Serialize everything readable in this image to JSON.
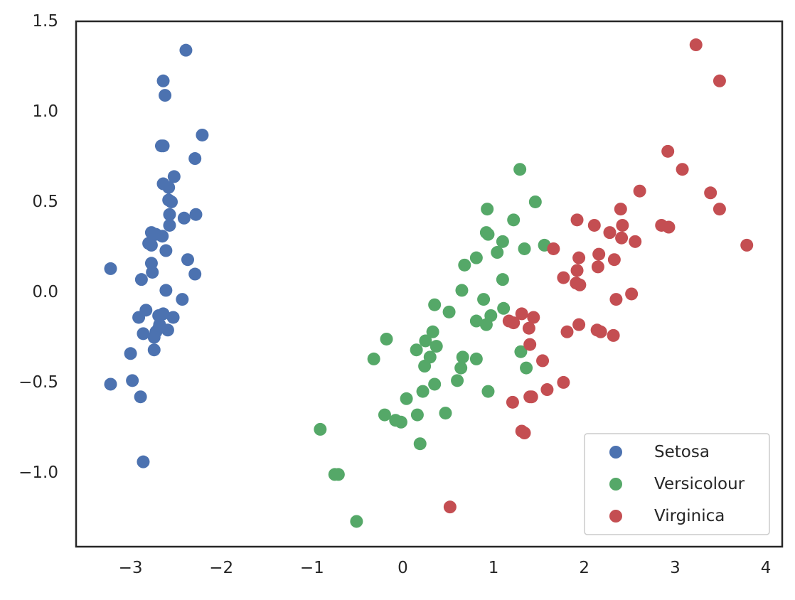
{
  "chart_data": {
    "type": "scatter",
    "title": "",
    "xlabel": "",
    "ylabel": "",
    "xlim": [
      -3.6,
      4.18
    ],
    "ylim": [
      -1.41,
      1.5
    ],
    "xticks": [
      -3,
      -2,
      -1,
      0,
      1,
      2,
      3,
      4
    ],
    "yticks": [
      -1.0,
      -0.5,
      0.0,
      0.5,
      1.0,
      1.5
    ],
    "xtick_labels": [
      "−3",
      "−2",
      "−1",
      "0",
      "1",
      "2",
      "3",
      "4"
    ],
    "ytick_labels": [
      "−1.0",
      "−0.5",
      "0.0",
      "0.5",
      "1.0",
      "1.5"
    ],
    "grid": false,
    "legend_position": "lower-right",
    "series": [
      {
        "name": "Setosa",
        "color": "#4c72b0",
        "x": [
          -2.39,
          -2.64,
          -2.62,
          -2.21,
          -2.29,
          -2.66,
          -2.64,
          -2.52,
          -2.64,
          -2.58,
          -2.58,
          -2.55,
          -2.57,
          -2.28,
          -2.41,
          -2.57,
          -2.72,
          -2.65,
          -2.8,
          -2.77,
          -2.61,
          -3.22,
          -2.76,
          -2.88,
          -2.37,
          -2.43,
          -2.77,
          -2.61,
          -2.64,
          -2.29,
          -2.83,
          -2.91,
          -2.68,
          -2.53,
          -2.72,
          -2.69,
          -2.74,
          -2.86,
          -2.59,
          -2.74,
          -2.69,
          -3.0,
          -2.77,
          -2.98,
          -3.22,
          -2.89,
          -2.86
        ],
        "y": [
          1.34,
          1.17,
          1.09,
          0.87,
          0.74,
          0.81,
          0.81,
          0.64,
          0.6,
          0.58,
          0.51,
          0.5,
          0.43,
          0.43,
          0.41,
          0.37,
          0.32,
          0.31,
          0.27,
          0.26,
          0.23,
          0.13,
          0.11,
          0.07,
          0.18,
          -0.04,
          0.16,
          0.01,
          -0.12,
          0.1,
          -0.1,
          -0.14,
          -0.18,
          -0.14,
          -0.22,
          -0.2,
          -0.25,
          -0.23,
          -0.21,
          -0.32,
          -0.13,
          -0.34,
          0.33,
          -0.49,
          -0.51,
          -0.58,
          -0.94
        ]
      },
      {
        "name": "Versicolour",
        "color": "#55a868",
        "x": [
          1.29,
          1.46,
          0.93,
          1.22,
          1.1,
          0.94,
          0.92,
          1.56,
          1.34,
          1.04,
          0.81,
          0.68,
          1.1,
          0.65,
          0.89,
          1.11,
          0.97,
          0.35,
          0.51,
          0.81,
          0.92,
          0.33,
          -0.18,
          0.37,
          0.25,
          0.15,
          0.3,
          0.24,
          -0.32,
          0.66,
          0.64,
          0.81,
          0.35,
          0.22,
          0.6,
          0.04,
          0.94,
          -0.2,
          0.16,
          -0.08,
          -0.02,
          0.47,
          0.19,
          -0.91,
          -0.75,
          -0.71,
          -0.51,
          1.36,
          1.3
        ],
        "y": [
          0.68,
          0.5,
          0.46,
          0.4,
          0.28,
          0.32,
          0.33,
          0.26,
          0.24,
          0.22,
          0.19,
          0.15,
          0.07,
          0.01,
          -0.04,
          -0.09,
          -0.13,
          -0.07,
          -0.11,
          -0.16,
          -0.18,
          -0.22,
          -0.26,
          -0.3,
          -0.27,
          -0.32,
          -0.36,
          -0.41,
          -0.37,
          -0.36,
          -0.42,
          -0.37,
          -0.51,
          -0.55,
          -0.49,
          -0.59,
          -0.55,
          -0.68,
          -0.68,
          -0.71,
          -0.72,
          -0.67,
          -0.84,
          -0.76,
          -1.01,
          -1.01,
          -1.27,
          -0.42,
          -0.33
        ]
      },
      {
        "name": "Virginica",
        "color": "#c44e52",
        "x": [
          3.23,
          3.49,
          2.92,
          3.08,
          3.39,
          3.49,
          3.79,
          2.61,
          2.4,
          1.92,
          2.11,
          2.28,
          2.42,
          2.41,
          2.85,
          2.93,
          2.56,
          1.66,
          1.94,
          2.16,
          2.33,
          1.92,
          1.77,
          1.91,
          1.95,
          2.15,
          2.35,
          2.52,
          1.31,
          1.44,
          1.22,
          1.17,
          1.39,
          1.4,
          1.94,
          2.14,
          2.18,
          2.32,
          1.81,
          1.54,
          1.4,
          1.59,
          1.77,
          1.21,
          1.42,
          1.31,
          1.34,
          0.52
        ],
        "y": [
          1.37,
          1.17,
          0.78,
          0.68,
          0.55,
          0.46,
          0.26,
          0.56,
          0.46,
          0.4,
          0.37,
          0.33,
          0.37,
          0.3,
          0.37,
          0.36,
          0.28,
          0.24,
          0.19,
          0.21,
          0.18,
          0.12,
          0.08,
          0.05,
          0.04,
          0.14,
          -0.04,
          -0.01,
          -0.12,
          -0.14,
          -0.17,
          -0.16,
          -0.2,
          -0.29,
          -0.18,
          -0.21,
          -0.22,
          -0.24,
          -0.22,
          -0.38,
          -0.58,
          -0.54,
          -0.5,
          -0.61,
          -0.58,
          -0.77,
          -0.78,
          -1.19
        ]
      }
    ]
  }
}
